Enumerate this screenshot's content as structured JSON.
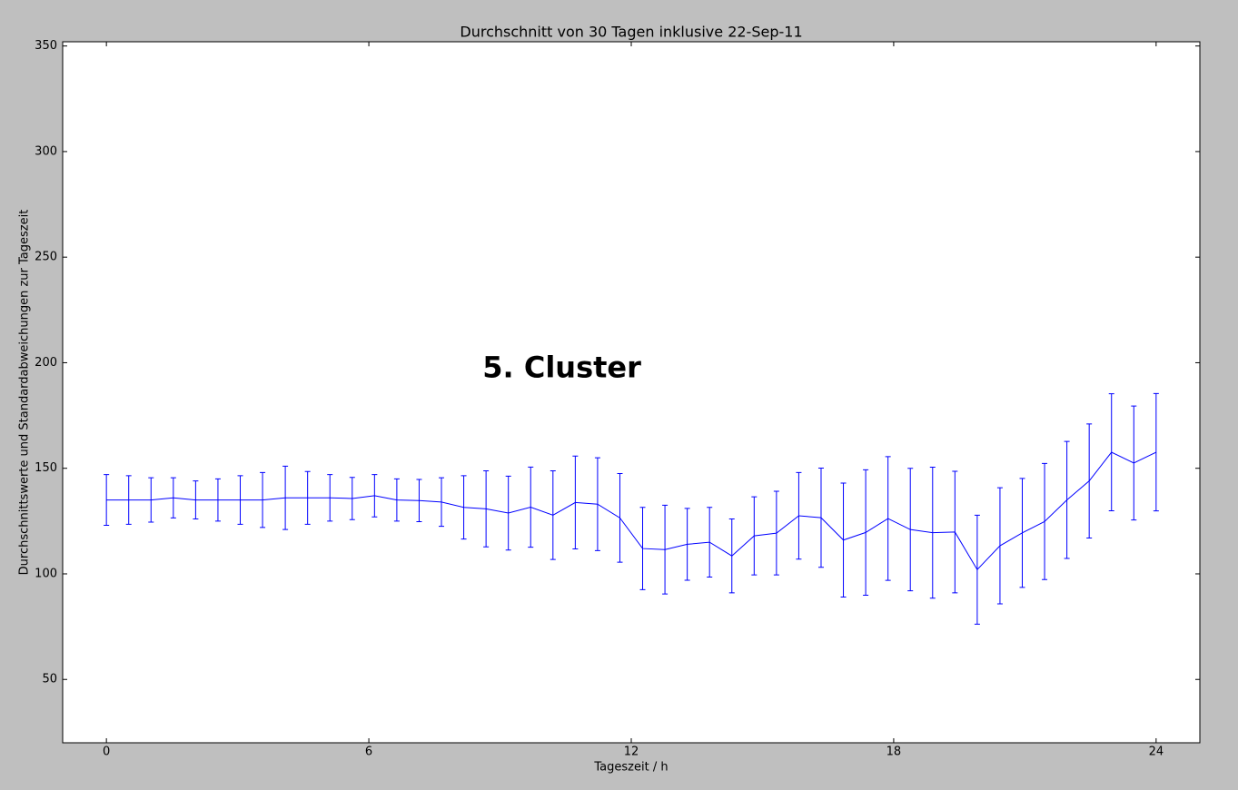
{
  "chart_data": {
    "type": "errorbar-line",
    "title": "Durchschnitt von 30 Tagen inklusive 22-Sep-11",
    "x_label": "Tageszeit / h",
    "y_label": "Durchschnittswerte und Standardabweichungen zur Tageszeit",
    "annotation": {
      "text": "5. Cluster",
      "x": 8.6,
      "y": 197
    },
    "color": "#0000ff",
    "x": [
      0,
      0.51,
      1.02,
      1.53,
      2.04,
      2.55,
      3.06,
      3.57,
      4.09,
      4.6,
      5.11,
      5.62,
      6.13,
      6.64,
      7.15,
      7.66,
      8.17,
      8.68,
      9.19,
      9.7,
      10.21,
      10.72,
      11.23,
      11.74,
      12.26,
      12.77,
      13.28,
      13.79,
      14.3,
      14.81,
      15.32,
      15.83,
      16.34,
      16.85,
      17.36,
      17.87,
      18.38,
      18.89,
      19.4,
      19.91,
      20.43,
      20.94,
      21.45,
      21.96,
      22.47,
      22.98,
      23.49,
      24
    ],
    "values": [
      135,
      135,
      135,
      136,
      135,
      135,
      135,
      135,
      136,
      136,
      136,
      135.7,
      137,
      135,
      134.7,
      134,
      131.5,
      130.8,
      128.8,
      131.6,
      127.8,
      133.8,
      133,
      126.5,
      112,
      111.5,
      114,
      115,
      108.5,
      118,
      119.3,
      127.5,
      126.6,
      116,
      119.6,
      126.2,
      121,
      119.5,
      119.8,
      102,
      113.3,
      119.4,
      124.8,
      135,
      144,
      157.6,
      152.5,
      157.6
    ],
    "errors": [
      12,
      11.5,
      10.5,
      9.5,
      9,
      10,
      11.5,
      13,
      15,
      12.5,
      11,
      10,
      10,
      10,
      10,
      11.5,
      15,
      18,
      17.5,
      19,
      21,
      22,
      22,
      21,
      19.5,
      21,
      17,
      16.5,
      17.5,
      18.5,
      19.8,
      20.5,
      23.5,
      27,
      29.7,
      29.3,
      29,
      31,
      28.8,
      25.8,
      27.5,
      25.8,
      27.5,
      27.7,
      27,
      27.7,
      27,
      27.8
    ],
    "xlim": [
      -1,
      25
    ],
    "xticks": [
      0,
      6,
      12,
      18,
      24
    ],
    "ylim": [
      20,
      352
    ],
    "yticks": [
      50,
      100,
      150,
      200,
      250,
      300,
      350
    ]
  }
}
